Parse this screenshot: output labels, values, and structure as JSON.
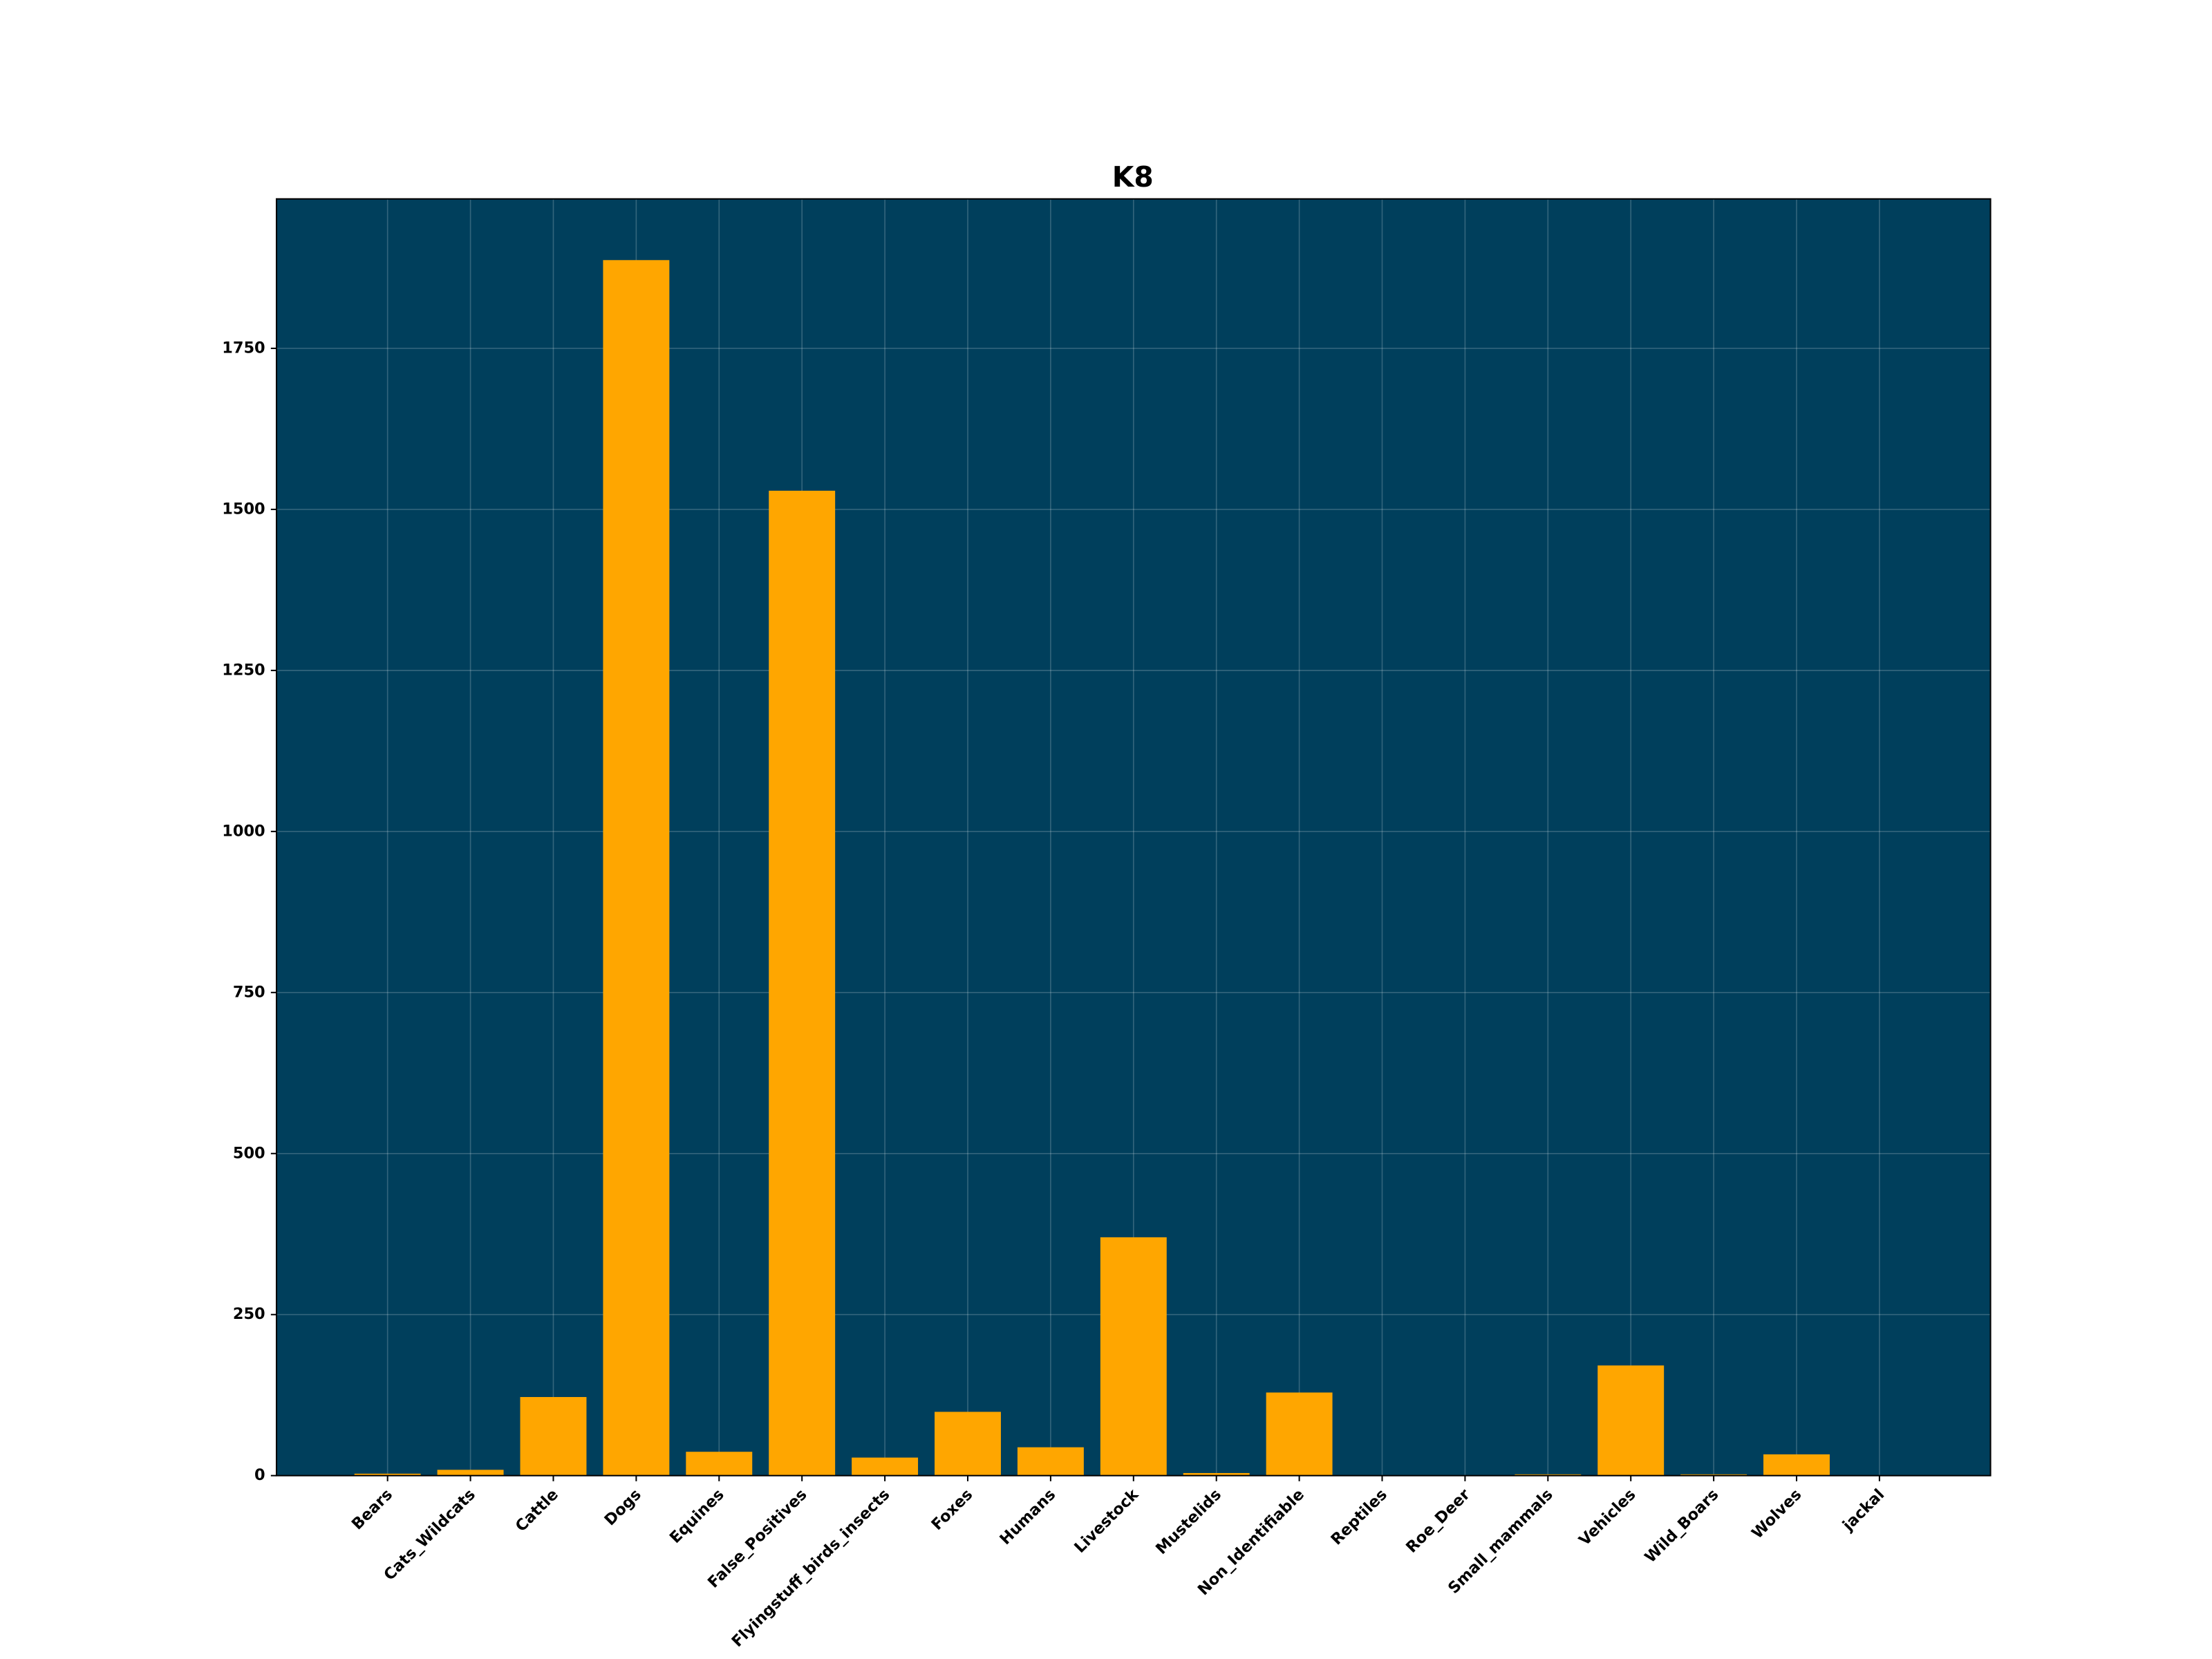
{
  "chart_data": {
    "type": "bar",
    "title": "K8",
    "categories": [
      "Bears",
      "Cats_Wildcats",
      "Cattle",
      "Dogs",
      "Equines",
      "False_Positives",
      "Flyingstuff_birds_insects",
      "Foxes",
      "Humans",
      "Livestock",
      "Mustelids",
      "Non_Identifiable",
      "Reptiles",
      "Roe_Deer",
      "Small_mammals",
      "Vehicles",
      "Wild_Boars",
      "Wolves",
      "jackal"
    ],
    "values": [
      3,
      9,
      122,
      1887,
      37,
      1529,
      28,
      99,
      44,
      370,
      4,
      129,
      0,
      0,
      2,
      171,
      2,
      33,
      0
    ],
    "color": "#ffa600",
    "background": "#003f5c",
    "ylim": [
      0,
      1982
    ],
    "yticks": [
      0,
      250,
      500,
      750,
      1000,
      1250,
      1500,
      1750
    ],
    "grid": true
  }
}
